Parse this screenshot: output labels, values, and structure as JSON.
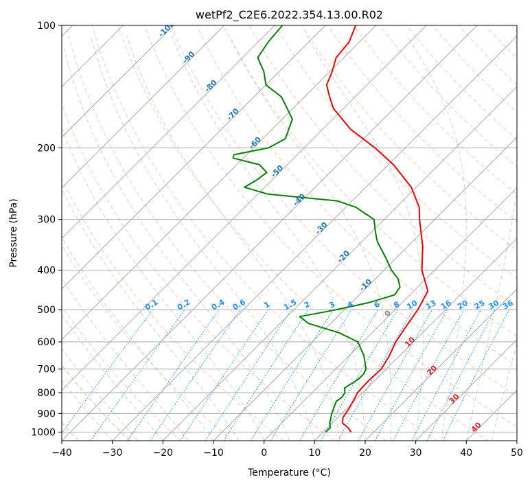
{
  "chart_data": {
    "type": "line",
    "title": "wetPf2_C2E6.2022.354.13.00.R02",
    "xlabel": "Temperature (°C)",
    "ylabel": "Pressure (hPa)",
    "xlim": [
      -40,
      50
    ],
    "ylim": [
      1050,
      100
    ],
    "x_ticks": [
      -40,
      -30,
      -20,
      -10,
      0,
      10,
      20,
      30,
      40,
      50
    ],
    "x_tick_labels": [
      "−40",
      "−30",
      "−20",
      "−10",
      "0",
      "10",
      "20",
      "30",
      "40",
      "50"
    ],
    "y_ticks": [
      1000,
      900,
      800,
      700,
      600,
      500,
      400,
      300,
      200,
      100
    ],
    "y_tick_labels": [
      "1000",
      "900",
      "800",
      "700",
      "600",
      "500",
      "400",
      "300",
      "200",
      "100"
    ],
    "skew_degrees": 45,
    "grid": true,
    "series": [
      {
        "name": "Temperature",
        "color": "#ee0000",
        "points": [
          [
            1000,
            15.5
          ],
          [
            975,
            14.0
          ],
          [
            950,
            12.0
          ],
          [
            920,
            11.0
          ],
          [
            880,
            10.5
          ],
          [
            850,
            10.0
          ],
          [
            800,
            9.0
          ],
          [
            750,
            8.8
          ],
          [
            700,
            9.0
          ],
          [
            650,
            8.0
          ],
          [
            600,
            6.5
          ],
          [
            550,
            5.5
          ],
          [
            500,
            4.5
          ],
          [
            450,
            2.8
          ],
          [
            400,
            -2.5
          ],
          [
            350,
            -7.0
          ],
          [
            300,
            -13.0
          ],
          [
            280,
            -15.5
          ],
          [
            250,
            -21.0
          ],
          [
            220,
            -29.0
          ],
          [
            200,
            -36.0
          ],
          [
            180,
            -44.5
          ],
          [
            160,
            -52.0
          ],
          [
            150,
            -55.0
          ],
          [
            140,
            -58.0
          ],
          [
            130,
            -59.5
          ],
          [
            120,
            -61.5
          ],
          [
            110,
            -62.0
          ],
          [
            100,
            -64.0
          ]
        ]
      },
      {
        "name": "Dewpoint",
        "color": "#008000",
        "points": [
          [
            1000,
            10.5
          ],
          [
            975,
            10.5
          ],
          [
            950,
            9.5
          ],
          [
            900,
            8.0
          ],
          [
            860,
            7.0
          ],
          [
            840,
            6.5
          ],
          [
            820,
            6.8
          ],
          [
            800,
            6.5
          ],
          [
            780,
            5.5
          ],
          [
            760,
            6.0
          ],
          [
            740,
            6.5
          ],
          [
            720,
            6.5
          ],
          [
            700,
            6.0
          ],
          [
            650,
            3.0
          ],
          [
            600,
            -1.0
          ],
          [
            570,
            -6.5
          ],
          [
            540,
            -14.5
          ],
          [
            520,
            -17.5
          ],
          [
            505,
            -13.0
          ],
          [
            490,
            -9.0
          ],
          [
            480,
            -6.5
          ],
          [
            460,
            -3.0
          ],
          [
            440,
            -3.5
          ],
          [
            420,
            -5.5
          ],
          [
            400,
            -8.5
          ],
          [
            370,
            -12.5
          ],
          [
            340,
            -17.0
          ],
          [
            320,
            -19.5
          ],
          [
            300,
            -22.0
          ],
          [
            280,
            -28.0
          ],
          [
            270,
            -33.0
          ],
          [
            260,
            -48.0
          ],
          [
            250,
            -54.0
          ],
          [
            240,
            -53.0
          ],
          [
            230,
            -52.5
          ],
          [
            220,
            -55.5
          ],
          [
            212,
            -62.0
          ],
          [
            208,
            -62.5
          ],
          [
            200,
            -57.0
          ],
          [
            190,
            -55.5
          ],
          [
            170,
            -58.0
          ],
          [
            150,
            -64.5
          ],
          [
            140,
            -70.0
          ],
          [
            130,
            -73.0
          ],
          [
            120,
            -77.0
          ],
          [
            110,
            -78.0
          ],
          [
            100,
            -78.5
          ]
        ]
      }
    ],
    "annotations": {
      "isotherm_labels": [
        "-100",
        "-90",
        "-80",
        "-70",
        "-60",
        "-50",
        "-40",
        "-30",
        "-20",
        "-10",
        "0",
        "10",
        "20",
        "30",
        "40"
      ],
      "mixing_ratio_labels": [
        "0.1",
        "0.2",
        "0.4",
        "0.6",
        "1",
        "1.5",
        "2",
        "3",
        "4",
        "6",
        "8",
        "10",
        "13",
        "16",
        "20",
        "25",
        "30",
        "36"
      ]
    },
    "colors": {
      "isotherm_cold_label": "#1f77b4",
      "isotherm_zero_label": "#808080",
      "isotherm_warm_label": "#d62728",
      "mixing_ratio": "#1e90ff",
      "dry_adiabat": "#ffa07a",
      "moist_adiabat": "#8fbc8f",
      "frame": "#000000",
      "grid": "#aaaaaa"
    }
  }
}
